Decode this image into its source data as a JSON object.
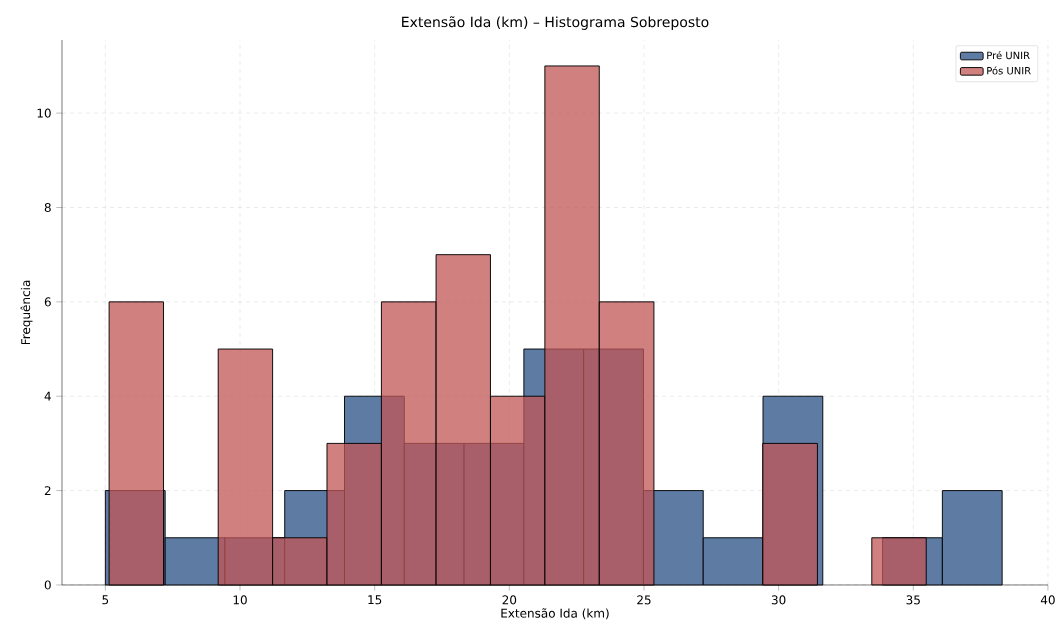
{
  "chart_data": {
    "type": "histogram",
    "title": "Extensão Ida (km) – Histograma Sobreposto",
    "xlabel": "Extensão Ida (km)",
    "ylabel": "Frequência",
    "bins": [
      5,
      7.22,
      9.44,
      11.66,
      13.88,
      16.1,
      18.32,
      20.54,
      22.76,
      24.98,
      27.2,
      29.42,
      31.64,
      33.86,
      36.08,
      38.3
    ],
    "series": [
      {
        "name": "Pré UNIR",
        "color": "#5e7ca3",
        "values": [
          2,
          1,
          1,
          2,
          4,
          3,
          3,
          5,
          5,
          2,
          1,
          4,
          0,
          1,
          2
        ]
      },
      {
        "name": "Pós UNIR",
        "color": "#c25656",
        "bins": [
          5.14,
          7.16,
          9.19,
          11.21,
          13.23,
          15.25,
          17.28,
          19.3,
          21.32,
          23.34,
          25.37,
          27.39,
          29.41,
          31.44,
          33.46,
          35.48
        ],
        "values": [
          6,
          0,
          5,
          1,
          3,
          6,
          7,
          4,
          11,
          6,
          0,
          0,
          3,
          0,
          1
        ]
      }
    ],
    "xlim": [
      3.39,
      40
    ],
    "ylim": [
      0,
      11.55
    ],
    "xticks": [
      5,
      10,
      15,
      20,
      25,
      30,
      35,
      40
    ],
    "yticks": [
      0,
      2,
      4,
      6,
      8,
      10
    ],
    "grid": true,
    "legend": "top right"
  }
}
